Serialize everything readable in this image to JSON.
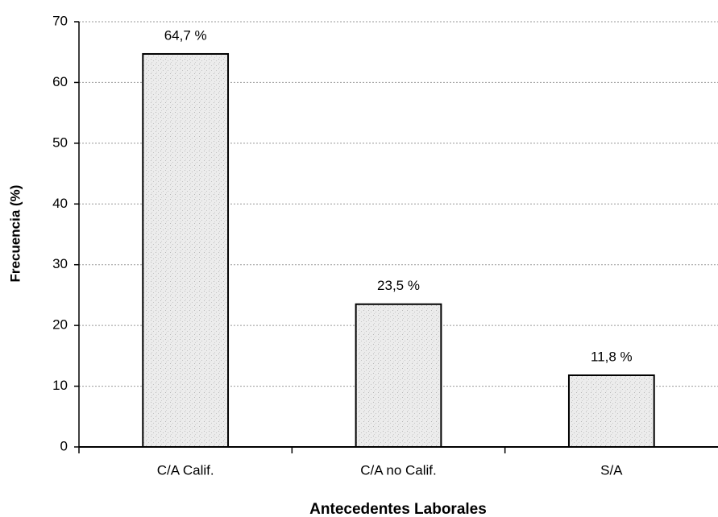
{
  "chart_data": {
    "type": "bar",
    "x_label": "Antecedentes Laborales",
    "y_label": "Frecuencia (%)",
    "categories": [
      "C/A Calif.",
      "C/A no Calif.",
      "S/A"
    ],
    "values": [
      64.7,
      23.5,
      11.8
    ],
    "value_labels": [
      "64,7 %",
      "23,5 %",
      "11,8 %"
    ],
    "color": "#dcdcdc",
    "ylim": [
      0,
      70
    ],
    "yticks": [
      0,
      10,
      20,
      30,
      40,
      50,
      60,
      70
    ],
    "grid": true
  }
}
